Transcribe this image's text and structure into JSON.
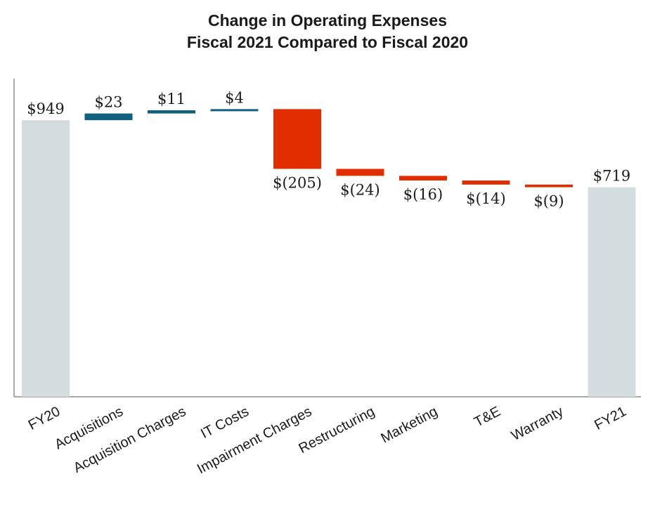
{
  "chart_data": {
    "type": "bar",
    "subtype": "waterfall",
    "title": "Change in Operating Expenses",
    "subtitle": "Fiscal 2021 Compared to Fiscal 2020",
    "xlabel": "",
    "ylabel": "",
    "ylim": [
      0,
      1000
    ],
    "grid": false,
    "categories": [
      "FY20",
      "Acquisitions",
      "Acquisition Charges",
      "IT Costs",
      "Impairment Charges",
      "Restructuring",
      "Marketing",
      "T&E",
      "Warranty",
      "FY21"
    ],
    "values": [
      949,
      23,
      11,
      4,
      -205,
      -24,
      -16,
      -14,
      -9,
      719
    ],
    "kinds": [
      "total",
      "delta",
      "delta",
      "delta",
      "delta",
      "delta",
      "delta",
      "delta",
      "delta",
      "total"
    ],
    "data_labels": [
      "$949",
      "$23",
      "$11",
      "$4",
      "$(205)",
      "$(24)",
      "$(16)",
      "$(14)",
      "$(9)",
      "$719"
    ],
    "colors": {
      "total": "#d3dde0",
      "increase": "#10617f",
      "decrease": "#e12e00",
      "axis": "#8c8c8c",
      "text": "#1a1a1a"
    }
  }
}
